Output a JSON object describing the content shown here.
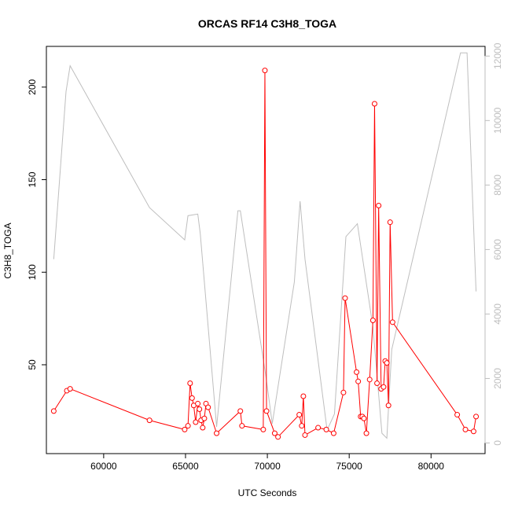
{
  "chart_data": {
    "type": "line",
    "title": "ORCAS RF14 C3H8_TOGA",
    "xlabel": "UTC Seconds",
    "ylabel": "C3H8_TOGA",
    "ylabel_right": "",
    "xlim": [
      56500,
      83300
    ],
    "ylim": [
      2,
      222
    ],
    "ylim_right": [
      -330,
      12300
    ],
    "x_ticks": [
      60000,
      65000,
      70000,
      75000,
      80000
    ],
    "y_ticks": [
      50,
      100,
      150,
      200
    ],
    "y_ticks_right": [
      0,
      2000,
      4000,
      6000,
      8000,
      10000,
      12000
    ],
    "colors": {
      "primary": "#ff0000",
      "secondary": "#bebebe",
      "axis": "#000000"
    },
    "series": [
      {
        "axis": "left",
        "color": "#ff0000",
        "marker": "open-circle",
        "points": [
          [
            56950,
            25
          ],
          [
            57750,
            36
          ],
          [
            57950,
            37
          ],
          [
            62800,
            20
          ],
          [
            64950,
            15
          ],
          [
            65150,
            17
          ],
          [
            65280,
            40
          ],
          [
            65400,
            32
          ],
          [
            65500,
            28
          ],
          [
            65620,
            19
          ],
          [
            65750,
            29
          ],
          [
            65850,
            26
          ],
          [
            65950,
            20
          ],
          [
            66050,
            16
          ],
          [
            66150,
            21
          ],
          [
            66250,
            29
          ],
          [
            66380,
            27
          ],
          [
            66900,
            13
          ],
          [
            68350,
            25
          ],
          [
            68450,
            17
          ],
          [
            69750,
            15
          ],
          [
            69850,
            209
          ],
          [
            69950,
            25
          ],
          [
            70450,
            13
          ],
          [
            70650,
            11
          ],
          [
            71950,
            23
          ],
          [
            72100,
            17
          ],
          [
            72200,
            33
          ],
          [
            72300,
            12
          ],
          [
            73100,
            16
          ],
          [
            73600,
            15
          ],
          [
            74050,
            13
          ],
          [
            74650,
            35
          ],
          [
            74750,
            86
          ],
          [
            75450,
            46
          ],
          [
            75550,
            41
          ],
          [
            75700,
            22
          ],
          [
            75800,
            22
          ],
          [
            75900,
            21
          ],
          [
            76050,
            13
          ],
          [
            76250,
            42
          ],
          [
            76450,
            74
          ],
          [
            76550,
            191
          ],
          [
            76700,
            40
          ],
          [
            76800,
            136
          ],
          [
            76950,
            37
          ],
          [
            77100,
            38
          ],
          [
            77200,
            52
          ],
          [
            77300,
            51
          ],
          [
            77400,
            28
          ],
          [
            77500,
            127
          ],
          [
            77650,
            73
          ],
          [
            81600,
            23
          ],
          [
            82100,
            15
          ],
          [
            82600,
            14
          ],
          [
            82750,
            22
          ]
        ]
      },
      {
        "axis": "right",
        "color": "#bebebe",
        "marker": "none",
        "points": [
          [
            56950,
            5700
          ],
          [
            57700,
            10900
          ],
          [
            57950,
            11700
          ],
          [
            62800,
            7300
          ],
          [
            64950,
            6300
          ],
          [
            65150,
            7050
          ],
          [
            65750,
            7100
          ],
          [
            65900,
            6500
          ],
          [
            66900,
            500
          ],
          [
            68200,
            7200
          ],
          [
            68350,
            7200
          ],
          [
            69900,
            2100
          ],
          [
            70300,
            600
          ],
          [
            71650,
            5000
          ],
          [
            72000,
            7500
          ],
          [
            72300,
            5700
          ],
          [
            73650,
            400
          ],
          [
            74100,
            900
          ],
          [
            74800,
            6400
          ],
          [
            75500,
            6800
          ],
          [
            76450,
            3600
          ],
          [
            77000,
            300
          ],
          [
            77300,
            150
          ],
          [
            77600,
            2900
          ],
          [
            81800,
            12100
          ],
          [
            82200,
            12100
          ],
          [
            82750,
            4700
          ]
        ]
      }
    ]
  }
}
